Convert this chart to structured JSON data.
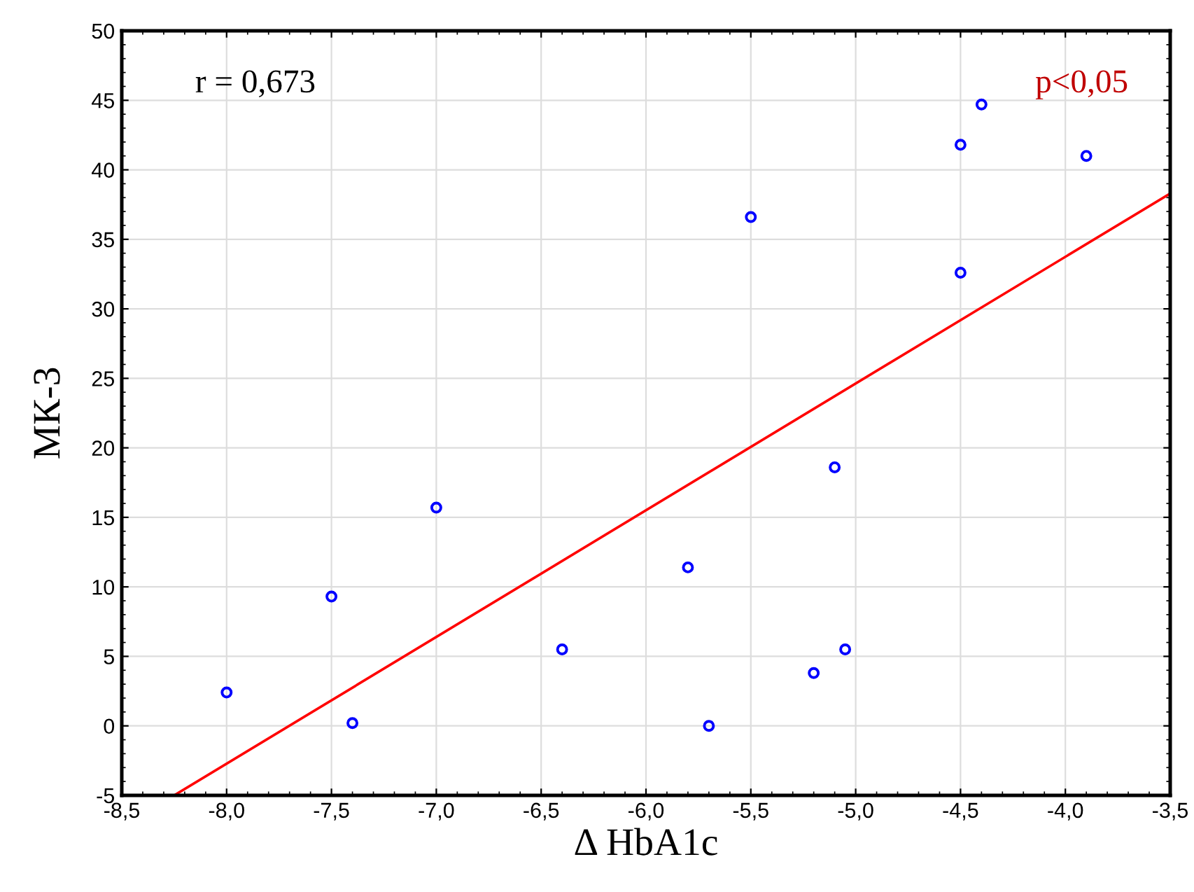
{
  "chart_data": {
    "type": "scatter",
    "xlabel": "Δ HbA1c",
    "ylabel": "МК-3",
    "annotations": [
      "r = 0,673",
      "p<0,05"
    ],
    "series": [
      {
        "color": "#0000ff",
        "marker": "circle",
        "x": [
          -8.0,
          -7.5,
          -7.4,
          -7.0,
          -6.4,
          -5.8,
          -5.7,
          -5.5,
          -5.2,
          -5.1,
          -5.05,
          -4.5,
          -4.5,
          -4.4,
          -3.9
        ],
        "values": [
          2.4,
          9.3,
          0.2,
          15.7,
          5.5,
          11.4,
          0.0,
          36.6,
          3.8,
          18.6,
          5.5,
          32.6,
          41.8,
          44.7,
          41.0
        ]
      },
      {
        "type": "line",
        "color": "#ff0000",
        "line_style": "solid",
        "x": [
          -8.25,
          -3.5
        ],
        "values": [
          -5,
          38.3
        ]
      }
    ],
    "xlim": [
      -8.5,
      -3.5
    ],
    "xticks": [
      {
        "value": -8.5,
        "label": "-8,5"
      },
      {
        "value": -8.0,
        "label": "-8,0"
      },
      {
        "value": -7.5,
        "label": "-7,5"
      },
      {
        "value": -7.0,
        "label": "-7,0"
      },
      {
        "value": -6.5,
        "label": "-6,5"
      },
      {
        "value": -6.0,
        "label": "-6,0"
      },
      {
        "value": -5.5,
        "label": "-5,5"
      },
      {
        "value": -5.0,
        "label": "-5,0"
      },
      {
        "value": -4.5,
        "label": "-4,5"
      },
      {
        "value": -4.0,
        "label": "-4,0"
      },
      {
        "value": -3.5,
        "label": "-3,5"
      }
    ],
    "ylim": [
      -5,
      50
    ],
    "yticks": [
      -5,
      0,
      5,
      10,
      15,
      20,
      25,
      30,
      35,
      40,
      45,
      50
    ],
    "grid": true
  }
}
